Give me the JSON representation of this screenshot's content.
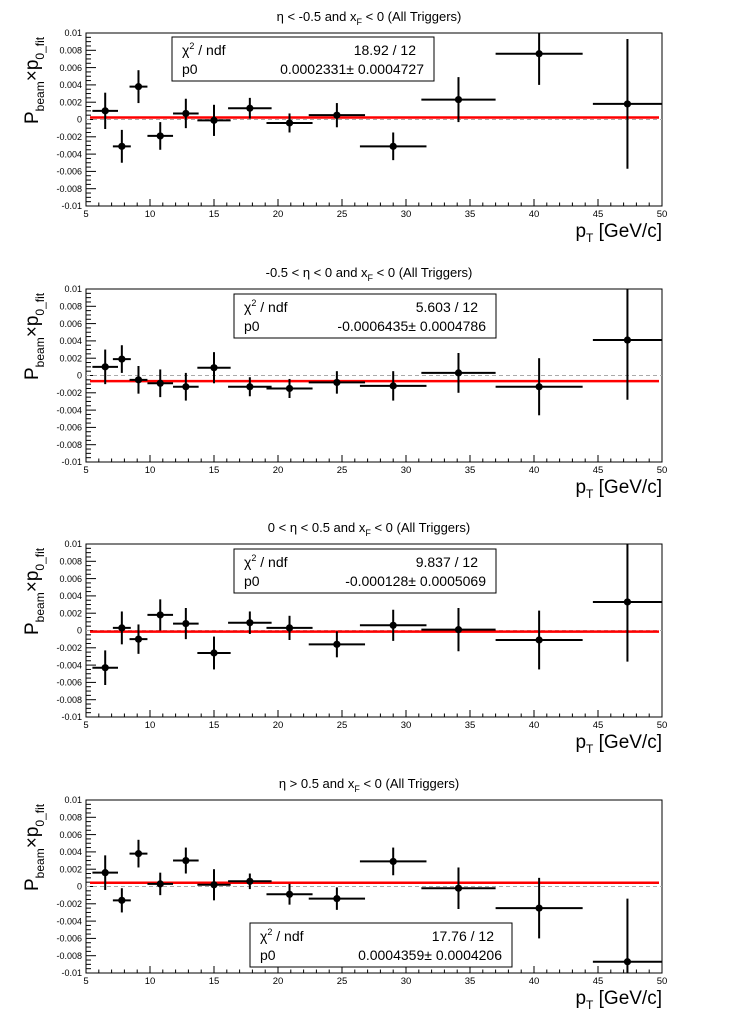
{
  "style": {
    "marker_color": "#000000",
    "fit_color": "#ff0000",
    "zero_line_color": "#aaaaaa",
    "frame_color": "#000000"
  },
  "chart_data": [
    {
      "type": "scatter",
      "title": "η < -0.5 and x_F < 0 (All Triggers)",
      "title_parts": {
        "pre": "η < -0.5 and x",
        "sub": "F",
        "post": " < 0 (All Triggers)"
      },
      "xlabel": {
        "main": "p",
        "sub": "T",
        "rest": " [GeV/c]"
      },
      "ylabel": {
        "a": "P",
        "a_sub": "beam",
        "mid": "×p",
        "b_sub": "0_fit"
      },
      "xlim": [
        5,
        50
      ],
      "ylim": [
        -0.01,
        0.01
      ],
      "grid": false,
      "x_ticks": [
        "5",
        "10",
        "15",
        "20",
        "25",
        "30",
        "35",
        "40",
        "45",
        "50"
      ],
      "y_ticks": [
        "-0.01",
        "-0.008",
        "-0.006",
        "-0.004",
        "-0.002",
        "0",
        "0.002",
        "0.004",
        "0.006",
        "0.008",
        "0.01"
      ],
      "stats": {
        "row1_label": "χ",
        "row1_sup": "2",
        "row1_rest": " / ndf",
        "row1_value": "18.92 / 12",
        "row2_label": "p0",
        "row2_value": "0.0002331± 0.0004727",
        "placement": "top-left"
      },
      "fit": {
        "p0": 0.0002331
      },
      "points": [
        {
          "x": 6.5,
          "y": 0.001,
          "xerr": 1.0,
          "yerr": 0.0021
        },
        {
          "x": 7.8,
          "y": -0.0031,
          "xerr": 0.7,
          "yerr": 0.0019
        },
        {
          "x": 9.1,
          "y": 0.0038,
          "xerr": 0.7,
          "yerr": 0.0019
        },
        {
          "x": 10.8,
          "y": -0.0019,
          "xerr": 1.0,
          "yerr": 0.0016
        },
        {
          "x": 12.8,
          "y": 0.0007,
          "xerr": 1.0,
          "yerr": 0.0017
        },
        {
          "x": 15.0,
          "y": -0.0001,
          "xerr": 1.3,
          "yerr": 0.0018
        },
        {
          "x": 17.8,
          "y": 0.0013,
          "xerr": 1.7,
          "yerr": 0.0012
        },
        {
          "x": 20.9,
          "y": -0.0004,
          "xerr": 1.8,
          "yerr": 0.0011
        },
        {
          "x": 24.6,
          "y": 0.0005,
          "xerr": 2.2,
          "yerr": 0.0014
        },
        {
          "x": 29.0,
          "y": -0.0031,
          "xerr": 2.6,
          "yerr": 0.0016
        },
        {
          "x": 34.1,
          "y": 0.0023,
          "xerr": 2.9,
          "yerr": 0.0026
        },
        {
          "x": 40.4,
          "y": 0.0076,
          "xerr": 3.4,
          "yerr": 0.0036
        },
        {
          "x": 47.3,
          "y": 0.0018,
          "xerr": 2.7,
          "yerr": 0.0075
        }
      ]
    },
    {
      "type": "scatter",
      "title": "-0.5 < η < 0 and x_F < 0 (All Triggers)",
      "title_parts": {
        "pre": "-0.5 < η < 0 and x",
        "sub": "F",
        "post": " < 0 (All Triggers)"
      },
      "xlabel": {
        "main": "p",
        "sub": "T",
        "rest": " [GeV/c]"
      },
      "ylabel": {
        "a": "P",
        "a_sub": "beam",
        "mid": "×p",
        "b_sub": "0_fit"
      },
      "xlim": [
        5,
        50
      ],
      "ylim": [
        -0.01,
        0.01
      ],
      "grid": false,
      "x_ticks": [
        "5",
        "10",
        "15",
        "20",
        "25",
        "30",
        "35",
        "40",
        "45",
        "50"
      ],
      "y_ticks": [
        "-0.01",
        "-0.008",
        "-0.006",
        "-0.004",
        "-0.002",
        "0",
        "0.002",
        "0.004",
        "0.006",
        "0.008",
        "0.01"
      ],
      "stats": {
        "row1_label": "χ",
        "row1_sup": "2",
        "row1_rest": " / ndf",
        "row1_value": "5.603 / 12",
        "row2_label": "p0",
        "row2_value": "-0.0006435± 0.0004786",
        "placement": "top-center"
      },
      "fit": {
        "p0": -0.0006435
      },
      "points": [
        {
          "x": 6.5,
          "y": 0.001,
          "xerr": 1.0,
          "yerr": 0.002
        },
        {
          "x": 7.8,
          "y": 0.0019,
          "xerr": 0.7,
          "yerr": 0.0016
        },
        {
          "x": 9.1,
          "y": -0.0005,
          "xerr": 0.7,
          "yerr": 0.0016
        },
        {
          "x": 10.8,
          "y": -0.0009,
          "xerr": 1.0,
          "yerr": 0.0016
        },
        {
          "x": 12.8,
          "y": -0.0013,
          "xerr": 1.0,
          "yerr": 0.0016
        },
        {
          "x": 15.0,
          "y": 0.0009,
          "xerr": 1.3,
          "yerr": 0.0018
        },
        {
          "x": 17.8,
          "y": -0.0013,
          "xerr": 1.7,
          "yerr": 0.0011
        },
        {
          "x": 20.9,
          "y": -0.0015,
          "xerr": 1.8,
          "yerr": 0.0011
        },
        {
          "x": 24.6,
          "y": -0.0008,
          "xerr": 2.2,
          "yerr": 0.0013
        },
        {
          "x": 29.0,
          "y": -0.0012,
          "xerr": 2.6,
          "yerr": 0.0017
        },
        {
          "x": 34.1,
          "y": 0.0003,
          "xerr": 2.9,
          "yerr": 0.0023
        },
        {
          "x": 40.4,
          "y": -0.0013,
          "xerr": 3.4,
          "yerr": 0.0033
        },
        {
          "x": 47.3,
          "y": 0.0041,
          "xerr": 2.7,
          "yerr": 0.0069
        }
      ]
    },
    {
      "type": "scatter",
      "title": "0 < η < 0.5 and x_F < 0 (All Triggers)",
      "title_parts": {
        "pre": "0 < η < 0.5 and x",
        "sub": "F",
        "post": " < 0 (All Triggers)"
      },
      "xlabel": {
        "main": "p",
        "sub": "T",
        "rest": " [GeV/c]"
      },
      "ylabel": {
        "a": "P",
        "a_sub": "beam",
        "mid": "×p",
        "b_sub": "0_fit"
      },
      "xlim": [
        5,
        50
      ],
      "ylim": [
        -0.01,
        0.01
      ],
      "grid": false,
      "x_ticks": [
        "5",
        "10",
        "15",
        "20",
        "25",
        "30",
        "35",
        "40",
        "45",
        "50"
      ],
      "y_ticks": [
        "-0.01",
        "-0.008",
        "-0.006",
        "-0.004",
        "-0.002",
        "0",
        "0.002",
        "0.004",
        "0.006",
        "0.008",
        "0.01"
      ],
      "stats": {
        "row1_label": "χ",
        "row1_sup": "2",
        "row1_rest": " / ndf",
        "row1_value": "9.837 / 12",
        "row2_label": "p0",
        "row2_value": "-0.000128± 0.0005069",
        "placement": "top-center"
      },
      "fit": {
        "p0": -0.000128
      },
      "points": [
        {
          "x": 6.5,
          "y": -0.0043,
          "xerr": 1.0,
          "yerr": 0.002
        },
        {
          "x": 7.8,
          "y": 0.0003,
          "xerr": 0.7,
          "yerr": 0.0019
        },
        {
          "x": 9.1,
          "y": -0.001,
          "xerr": 0.7,
          "yerr": 0.0017
        },
        {
          "x": 10.8,
          "y": 0.0018,
          "xerr": 1.0,
          "yerr": 0.0018
        },
        {
          "x": 12.8,
          "y": 0.0008,
          "xerr": 1.0,
          "yerr": 0.0018
        },
        {
          "x": 15.0,
          "y": -0.0026,
          "xerr": 1.3,
          "yerr": 0.0019
        },
        {
          "x": 17.8,
          "y": 0.0009,
          "xerr": 1.7,
          "yerr": 0.0013
        },
        {
          "x": 20.9,
          "y": 0.0003,
          "xerr": 1.8,
          "yerr": 0.0014
        },
        {
          "x": 24.6,
          "y": -0.0016,
          "xerr": 2.2,
          "yerr": 0.0015
        },
        {
          "x": 29.0,
          "y": 0.0006,
          "xerr": 2.6,
          "yerr": 0.0018
        },
        {
          "x": 34.1,
          "y": 0.0001,
          "xerr": 2.9,
          "yerr": 0.0025
        },
        {
          "x": 40.4,
          "y": -0.0011,
          "xerr": 3.4,
          "yerr": 0.0034
        },
        {
          "x": 47.3,
          "y": 0.0033,
          "xerr": 2.7,
          "yerr": 0.0069
        }
      ]
    },
    {
      "type": "scatter",
      "title": "η > 0.5 and x_F < 0 (All Triggers)",
      "title_parts": {
        "pre": "η > 0.5 and x",
        "sub": "F",
        "post": " < 0 (All Triggers)"
      },
      "xlabel": {
        "main": "p",
        "sub": "T",
        "rest": " [GeV/c]"
      },
      "ylabel": {
        "a": "P",
        "a_sub": "beam",
        "mid": "×p",
        "b_sub": "0_fit"
      },
      "xlim": [
        5,
        50
      ],
      "ylim": [
        -0.01,
        0.01
      ],
      "grid": false,
      "x_ticks": [
        "5",
        "10",
        "15",
        "20",
        "25",
        "30",
        "35",
        "40",
        "45",
        "50"
      ],
      "y_ticks": [
        "-0.01",
        "-0.008",
        "-0.006",
        "-0.004",
        "-0.002",
        "0",
        "0.002",
        "0.004",
        "0.006",
        "0.008",
        "0.01"
      ],
      "stats": {
        "row1_label": "χ",
        "row1_sup": "2",
        "row1_rest": " / ndf",
        "row1_value": "17.76 / 12",
        "row2_label": "p0",
        "row2_value": "0.0004359± 0.0004206",
        "placement": "bottom-center"
      },
      "fit": {
        "p0": 0.0004359
      },
      "points": [
        {
          "x": 6.5,
          "y": 0.0016,
          "xerr": 1.0,
          "yerr": 0.002
        },
        {
          "x": 7.8,
          "y": -0.0016,
          "xerr": 0.7,
          "yerr": 0.0014
        },
        {
          "x": 9.1,
          "y": 0.0038,
          "xerr": 0.7,
          "yerr": 0.0016
        },
        {
          "x": 10.8,
          "y": 0.0003,
          "xerr": 1.0,
          "yerr": 0.0013
        },
        {
          "x": 12.8,
          "y": 0.003,
          "xerr": 1.0,
          "yerr": 0.0015
        },
        {
          "x": 15.0,
          "y": 0.0002,
          "xerr": 1.3,
          "yerr": 0.0018
        },
        {
          "x": 17.8,
          "y": 0.0006,
          "xerr": 1.7,
          "yerr": 0.0009
        },
        {
          "x": 20.9,
          "y": -0.0009,
          "xerr": 1.8,
          "yerr": 0.0012
        },
        {
          "x": 24.6,
          "y": -0.0014,
          "xerr": 2.2,
          "yerr": 0.0013
        },
        {
          "x": 29.0,
          "y": 0.0029,
          "xerr": 2.6,
          "yerr": 0.0016
        },
        {
          "x": 34.1,
          "y": -0.0002,
          "xerr": 2.9,
          "yerr": 0.0024
        },
        {
          "x": 40.4,
          "y": -0.0025,
          "xerr": 3.4,
          "yerr": 0.0035
        },
        {
          "x": 47.3,
          "y": -0.0087,
          "xerr": 2.7,
          "yerr": 0.0073
        }
      ]
    }
  ]
}
